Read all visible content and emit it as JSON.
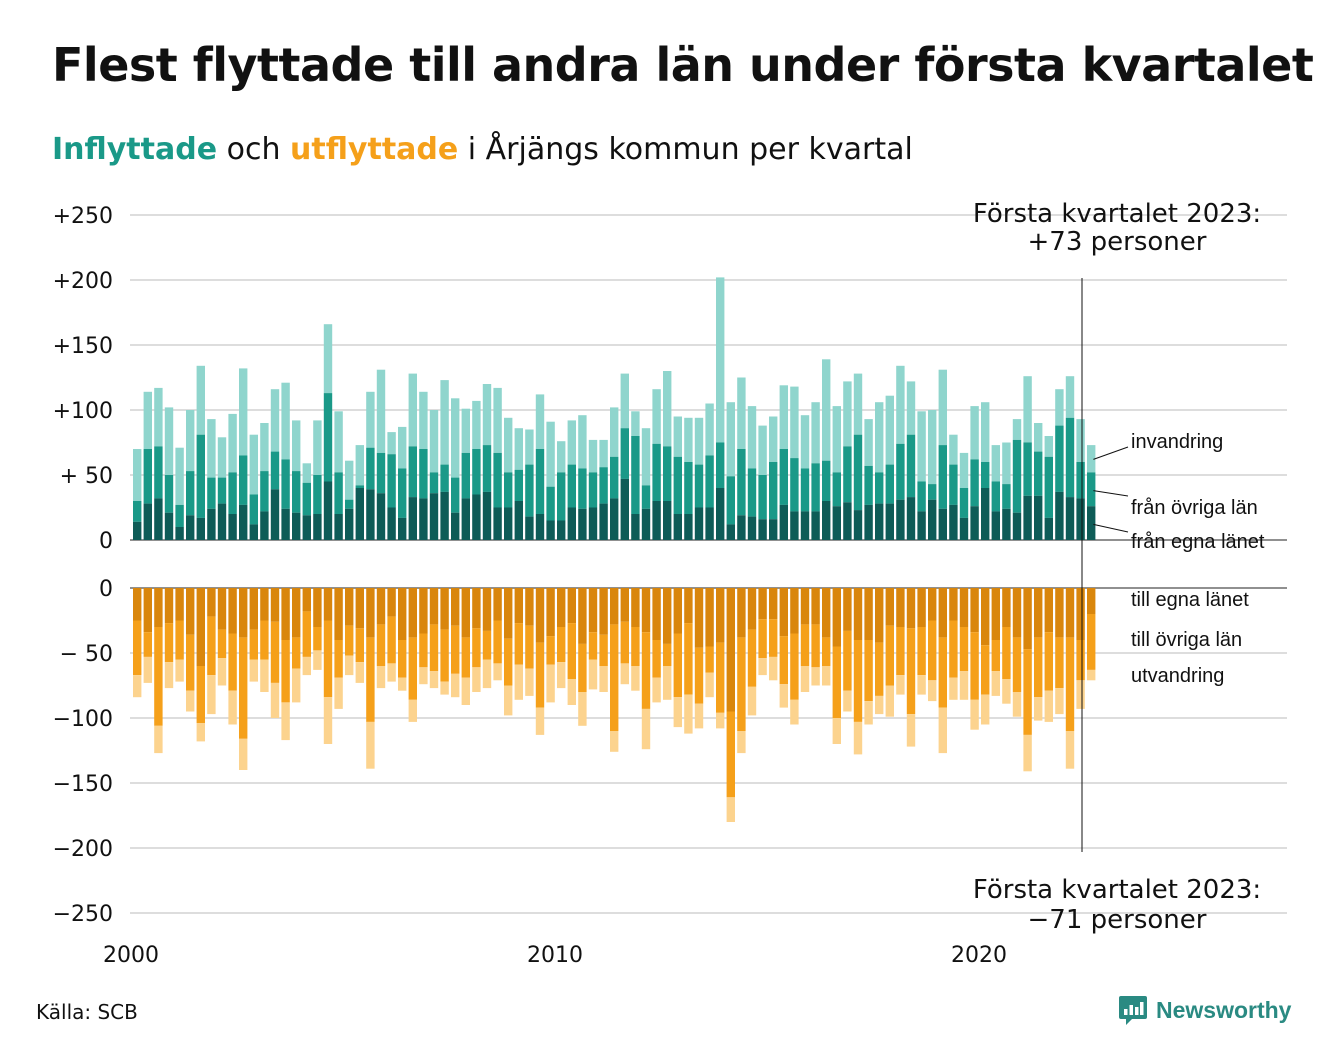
{
  "title": "Flest flyttade till andra län under första kvartalet",
  "subtitle": {
    "in_word": "Inflyttade",
    "and_word": " och ",
    "out_word": "utflyttade",
    "rest": " i Årjängs kommun per kvartal"
  },
  "source": "Källa: SCB",
  "logo_text": "Newsworthy",
  "colors": {
    "in_egna": "#0e5c57",
    "in_ovriga": "#1a9988",
    "in_invandring": "#8fd5cd",
    "out_egna": "#d9860c",
    "out_ovriga": "#f5a01a",
    "out_utvandring": "#fcd38e",
    "grid": "#dddddd",
    "logo": "#2a8a82"
  },
  "chart_data": {
    "type": "bar",
    "stacked": true,
    "x_start": "2000 Q1",
    "x_end": "2023 Q1",
    "x_ticks": [
      "2000",
      "2010",
      "2020"
    ],
    "y_ticks_top": [
      "+250",
      "+200",
      "+150",
      "+100",
      "+ 50",
      "0"
    ],
    "y_ticks_bottom": [
      "0",
      "− 50",
      "−100",
      "−150",
      "−200",
      "−250"
    ],
    "ylim_top": [
      0,
      250
    ],
    "ylim_bottom": [
      -250,
      0
    ],
    "grid": true,
    "annotation_top": [
      "Första kvartalet 2023:",
      "+73 personer"
    ],
    "annotation_bottom": [
      "Första kvartalet 2023:",
      "−71 personer"
    ],
    "series_labels_in": [
      "invandring",
      "från övriga län",
      "från egna länet"
    ],
    "series_labels_out": [
      "till egna länet",
      "till övriga län",
      "utvandring"
    ],
    "inflyttade_total": [
      70,
      114,
      117,
      102,
      71,
      100,
      134,
      93,
      79,
      97,
      132,
      81,
      90,
      116,
      121,
      92,
      59,
      92,
      166,
      99,
      61,
      73,
      114,
      131,
      83,
      87,
      128,
      114,
      100,
      123,
      109,
      101,
      107,
      120,
      117,
      94,
      86,
      85,
      112,
      91,
      76,
      92,
      96,
      77,
      77,
      102,
      128,
      99,
      86,
      116,
      130,
      95,
      94,
      94,
      105,
      202,
      106,
      125,
      103,
      88,
      95,
      119,
      118,
      96,
      106,
      139,
      103,
      122,
      128,
      93,
      106,
      111,
      134,
      122,
      99,
      100,
      131,
      81,
      67,
      103,
      106,
      73,
      75,
      93,
      126,
      90,
      80,
      116,
      126,
      93,
      73
    ],
    "inflyttade_ovriga_plus_egna": [
      30,
      70,
      72,
      50,
      27,
      53,
      81,
      48,
      48,
      52,
      65,
      35,
      53,
      68,
      62,
      53,
      44,
      50,
      113,
      52,
      31,
      42,
      71,
      67,
      66,
      55,
      72,
      70,
      52,
      58,
      48,
      67,
      70,
      73,
      67,
      52,
      54,
      58,
      70,
      41,
      52,
      58,
      55,
      52,
      56,
      64,
      86,
      80,
      42,
      74,
      72,
      64,
      60,
      58,
      65,
      75,
      49,
      70,
      55,
      50,
      60,
      70,
      63,
      55,
      59,
      61,
      52,
      72,
      81,
      57,
      52,
      58,
      74,
      81,
      45,
      43,
      73,
      58,
      40,
      62,
      60,
      45,
      43,
      77,
      75,
      68,
      64,
      88,
      94,
      60,
      52
    ],
    "inflyttade_egna": [
      14,
      28,
      32,
      21,
      10,
      19,
      17,
      24,
      28,
      20,
      27,
      12,
      22,
      39,
      24,
      21,
      19,
      20,
      45,
      20,
      24,
      40,
      39,
      36,
      25,
      17,
      33,
      32,
      36,
      37,
      21,
      32,
      35,
      37,
      25,
      25,
      30,
      18,
      20,
      15,
      15,
      25,
      24,
      25,
      28,
      32,
      47,
      20,
      24,
      30,
      30,
      20,
      20,
      25,
      25,
      40,
      12,
      19,
      18,
      16,
      16,
      27,
      22,
      22,
      22,
      30,
      26,
      29,
      23,
      27,
      28,
      28,
      31,
      33,
      22,
      31,
      24,
      27,
      17,
      26,
      40,
      22,
      24,
      21,
      34,
      34,
      17,
      37,
      33,
      32,
      26
    ],
    "utflyttade_total": [
      -84,
      -73,
      -127,
      -77,
      -72,
      -95,
      -118,
      -97,
      -75,
      -105,
      -140,
      -72,
      -80,
      -100,
      -117,
      -88,
      -67,
      -63,
      -120,
      -93,
      -67,
      -73,
      -139,
      -77,
      -72,
      -79,
      -103,
      -74,
      -77,
      -82,
      -84,
      -90,
      -80,
      -77,
      -71,
      -98,
      -86,
      -83,
      -113,
      -88,
      -77,
      -90,
      -106,
      -78,
      -80,
      -126,
      -74,
      -79,
      -124,
      -88,
      -86,
      -107,
      -112,
      -108,
      -84,
      -108,
      -180,
      -127,
      -98,
      -67,
      -71,
      -92,
      -105,
      -80,
      -75,
      -75,
      -120,
      -95,
      -128,
      -105,
      -97,
      -99,
      -82,
      -122,
      -82,
      -87,
      -127,
      -86,
      -86,
      -109,
      -105,
      -83,
      -89,
      -99,
      -141,
      -102,
      -103,
      -97,
      -139,
      -93,
      -71
    ],
    "utflyttade_ovriga_plus_egna": [
      -67,
      -53,
      -106,
      -57,
      -55,
      -79,
      -104,
      -67,
      -54,
      -79,
      -116,
      -55,
      -55,
      -73,
      -88,
      -62,
      -53,
      -48,
      -84,
      -69,
      -52,
      -57,
      -103,
      -60,
      -58,
      -69,
      -86,
      -61,
      -64,
      -72,
      -66,
      -69,
      -61,
      -55,
      -58,
      -75,
      -59,
      -62,
      -92,
      -59,
      -57,
      -70,
      -80,
      -55,
      -60,
      -110,
      -58,
      -60,
      -93,
      -69,
      -60,
      -84,
      -82,
      -89,
      -65,
      -96,
      -161,
      -110,
      -76,
      -54,
      -53,
      -74,
      -86,
      -60,
      -61,
      -60,
      -100,
      -79,
      -103,
      -87,
      -83,
      -75,
      -67,
      -97,
      -67,
      -71,
      -92,
      -69,
      -64,
      -86,
      -82,
      -64,
      -70,
      -80,
      -113,
      -84,
      -79,
      -77,
      -110,
      -71,
      -63
    ],
    "utflyttade_egna": [
      -25,
      -34,
      -30,
      -27,
      -25,
      -36,
      -60,
      -22,
      -32,
      -35,
      -38,
      -32,
      -25,
      -26,
      -40,
      -38,
      -18,
      -30,
      -25,
      -40,
      -29,
      -31,
      -38,
      -28,
      -22,
      -40,
      -38,
      -35,
      -28,
      -32,
      -29,
      -38,
      -31,
      -33,
      -25,
      -39,
      -27,
      -29,
      -42,
      -37,
      -30,
      -27,
      -43,
      -34,
      -36,
      -28,
      -26,
      -30,
      -34,
      -40,
      -43,
      -35,
      -27,
      -46,
      -45,
      -42,
      -95,
      -38,
      -32,
      -24,
      -24,
      -37,
      -35,
      -28,
      -28,
      -38,
      -45,
      -33,
      -40,
      -40,
      -42,
      -29,
      -30,
      -31,
      -30,
      -25,
      -38,
      -25,
      -30,
      -34,
      -44,
      -40,
      -30,
      -38,
      -47,
      -38,
      -34,
      -38,
      -38,
      -40,
      -20
    ]
  }
}
